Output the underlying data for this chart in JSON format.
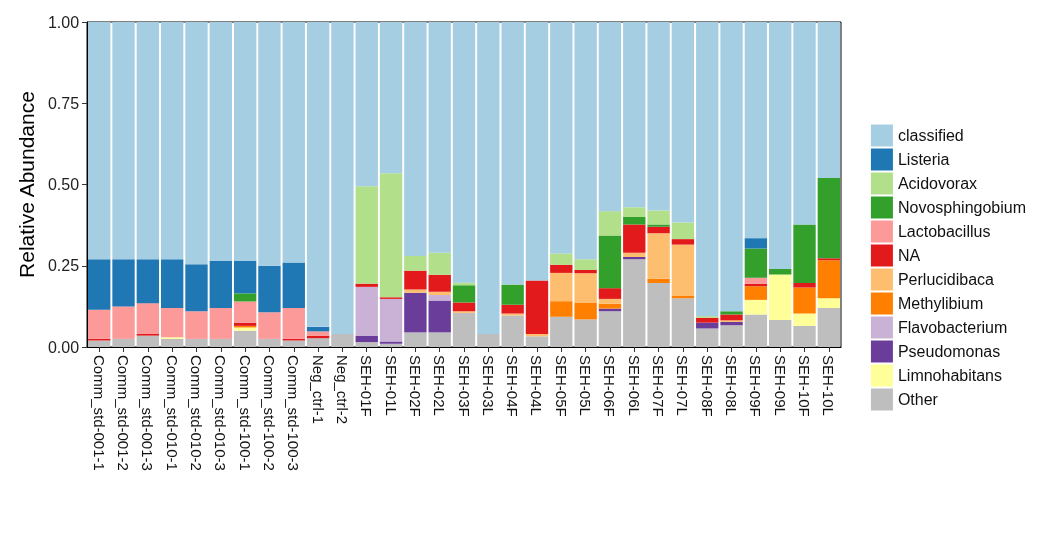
{
  "chart_data": {
    "type": "bar",
    "stacked": true,
    "ylabel": "Relative Abundance",
    "legend": "right",
    "grid": false,
    "categories": [
      "Comm_std-001-1",
      "Comm_std-001-2",
      "Comm_std-001-3",
      "Comm_std-010-1",
      "Comm_std-010-2",
      "Comm_std-010-3",
      "Comm_std-100-1",
      "Comm_std-100-2",
      "Comm_std-100-3",
      "Neg_ctrl-1",
      "Neg_ctrl-2",
      "SEH-01F",
      "SEH-01L",
      "SEH-02F",
      "SEH-02L",
      "SEH-03F",
      "SEH-03L",
      "SEH-04F",
      "SEH-04L",
      "SEH-05F",
      "SEH-05L",
      "SEH-06F",
      "SEH-06L",
      "SEH-07F",
      "SEH-07L",
      "SEH-08F",
      "SEH-08L",
      "SEH-09F",
      "SEH-09L",
      "SEH-10F",
      "SEH-10L"
    ],
    "ylim": [
      0,
      1
    ],
    "yticks": [
      {
        "value": 0,
        "label": "0.00"
      },
      {
        "value": 0.25,
        "label": "0.25"
      },
      {
        "value": 0.5,
        "label": "0.50"
      },
      {
        "value": 0.75,
        "label": "0.75"
      },
      {
        "value": 1,
        "label": "1.00"
      }
    ],
    "series": [
      {
        "name": "Other",
        "color": "#bebebe",
        "values": [
          0.02,
          0.025,
          0.035,
          0.025,
          0.025,
          0.025,
          0.05,
          0.025,
          0.02,
          0.027,
          0.04,
          0.015,
          0.01,
          0.045,
          0.045,
          0.105,
          0.04,
          0.097,
          0.033,
          0.093,
          0.085,
          0.11,
          0.27,
          0.197,
          0.15,
          0.057,
          0.067,
          0.1,
          0.083,
          0.065,
          0.12
        ]
      },
      {
        "name": "Limnohabitans",
        "color": "#ffff99",
        "values": [
          0,
          0,
          0,
          0.005,
          0,
          0,
          0.01,
          0,
          0,
          0,
          0,
          0,
          0,
          0,
          0,
          0,
          0,
          0,
          0,
          0,
          0,
          0,
          0,
          0,
          0,
          0,
          0,
          0.045,
          0.14,
          0.038,
          0.03
        ]
      },
      {
        "name": "Pseudomonas",
        "color": "#6a3d9a",
        "values": [
          0,
          0,
          0,
          0,
          0,
          0,
          0,
          0,
          0,
          0,
          0,
          0.02,
          0.007,
          0.122,
          0.098,
          0,
          0,
          0,
          0,
          0,
          0,
          0.008,
          0.007,
          0,
          0,
          0.018,
          0.01,
          0,
          0,
          0,
          0
        ]
      },
      {
        "name": "Flavobacterium",
        "color": "#cab2d6",
        "values": [
          0,
          0,
          0,
          0,
          0,
          0,
          0,
          0,
          0,
          0,
          0,
          0.15,
          0.131,
          0,
          0.017,
          0,
          0,
          0,
          0,
          0,
          0,
          0,
          0,
          0,
          0,
          0,
          0,
          0,
          0,
          0,
          0
        ]
      },
      {
        "name": "Methylibium",
        "color": "#ff7f00",
        "values": [
          0,
          0,
          0,
          0,
          0,
          0,
          0.005,
          0,
          0,
          0,
          0,
          0,
          0,
          0,
          0,
          0,
          0,
          0,
          0,
          0.048,
          0.052,
          0.015,
          0,
          0.013,
          0.007,
          0,
          0,
          0.042,
          0,
          0.08,
          0.117
        ]
      },
      {
        "name": "Perlucidibaca",
        "color": "#fdbf6f",
        "values": [
          0,
          0,
          0,
          0,
          0,
          0,
          0,
          0,
          0,
          0,
          0,
          0,
          0,
          0.01,
          0.01,
          0.005,
          0,
          0.006,
          0.007,
          0.087,
          0.09,
          0.015,
          0.013,
          0.14,
          0.158,
          0,
          0.005,
          0,
          0,
          0,
          0
        ]
      },
      {
        "name": "NA",
        "color": "#e31a1c",
        "values": [
          0.005,
          0,
          0.005,
          0,
          0,
          0,
          0.01,
          0,
          0.005,
          0.008,
          0,
          0.01,
          0.005,
          0.058,
          0.052,
          0.027,
          0,
          0.027,
          0.165,
          0.025,
          0.01,
          0.033,
          0.087,
          0.02,
          0.017,
          0.015,
          0.018,
          0.008,
          0,
          0.014,
          0.006
        ]
      },
      {
        "name": "Lactobacillus",
        "color": "#fb9a99",
        "values": [
          0.09,
          0.1,
          0.095,
          0.09,
          0.085,
          0.095,
          0.065,
          0.082,
          0.095,
          0.013,
          0,
          0,
          0,
          0,
          0,
          0,
          0,
          0,
          0,
          0,
          0,
          0,
          0,
          0,
          0,
          0,
          0,
          0.018,
          0,
          0,
          0
        ]
      },
      {
        "name": "Novosphingobium",
        "color": "#33a02c",
        "values": [
          0,
          0,
          0,
          0,
          0,
          0,
          0.025,
          0,
          0,
          0,
          0,
          0,
          0,
          0,
          0,
          0.053,
          0,
          0.062,
          0,
          0,
          0,
          0.162,
          0.023,
          0.007,
          0,
          0,
          0.01,
          0.09,
          0.017,
          0.18,
          0.247
        ]
      },
      {
        "name": "Acidovorax",
        "color": "#b2df8a",
        "values": [
          0,
          0,
          0,
          0,
          0,
          0,
          0,
          0,
          0,
          0,
          0,
          0.3,
          0.382,
          0.045,
          0.068,
          0.008,
          0,
          0,
          0,
          0.035,
          0.033,
          0.075,
          0.03,
          0.043,
          0.051,
          0.005,
          0,
          0,
          0,
          0,
          0
        ]
      },
      {
        "name": "Listeria",
        "color": "#1f78b4",
        "values": [
          0.155,
          0.145,
          0.135,
          0.15,
          0.145,
          0.145,
          0.1,
          0.143,
          0.14,
          0.014,
          0,
          0,
          0,
          0,
          0,
          0,
          0,
          0,
          0,
          0,
          0,
          0,
          0,
          0,
          0,
          0,
          0,
          0.032,
          0,
          0,
          0
        ]
      },
      {
        "name": "classified",
        "color": "#a6cee3",
        "values": [
          0.73,
          0.73,
          0.73,
          0.73,
          0.745,
          0.735,
          0.735,
          0.75,
          0.74,
          0.938,
          0.96,
          0.505,
          0.465,
          0.72,
          0.71,
          0.802,
          0.96,
          0.808,
          0.795,
          0.712,
          0.73,
          0.582,
          0.57,
          0.58,
          0.617,
          0.905,
          0.89,
          0.665,
          0.76,
          0.623,
          0.48
        ]
      }
    ]
  }
}
